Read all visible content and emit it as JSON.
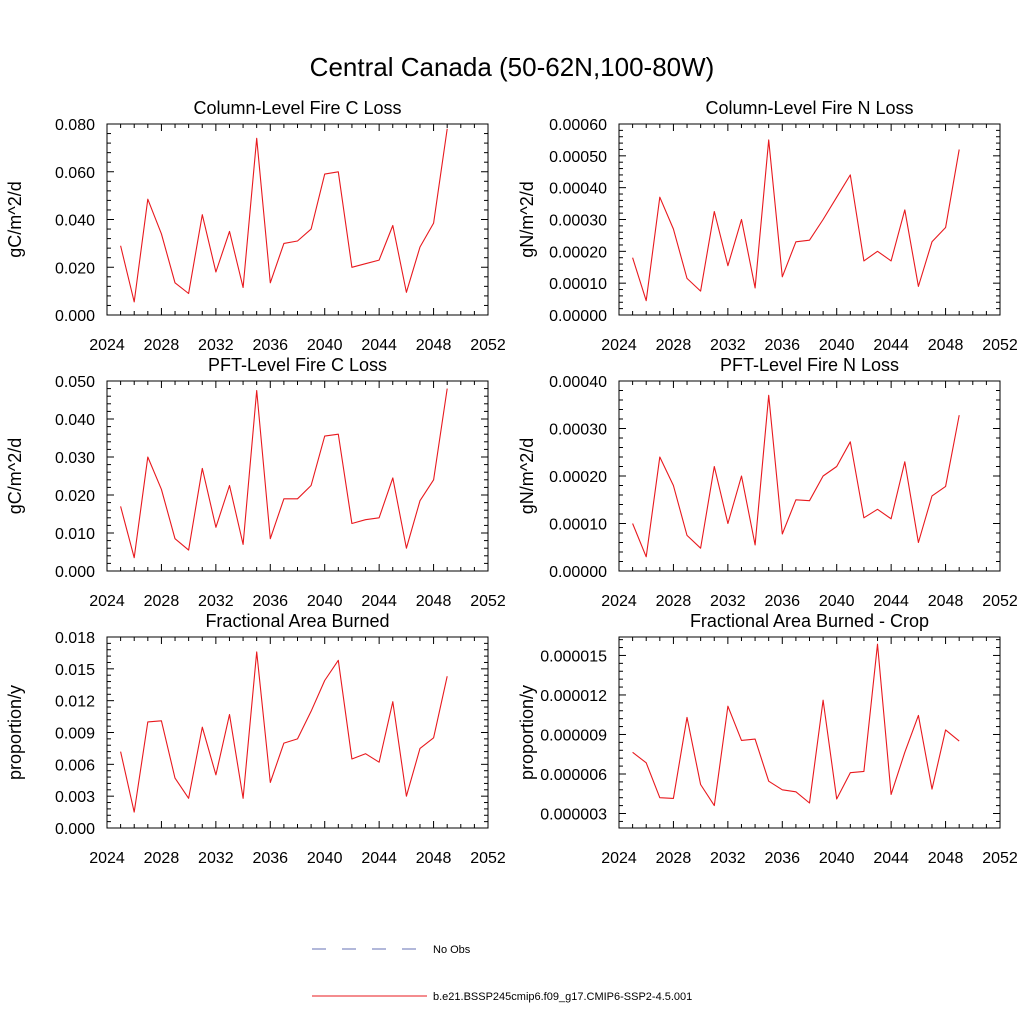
{
  "figure_title": "Central Canada (50-62N,100-80W)",
  "line_color": "#e8191e",
  "obs_color": "#6470b4",
  "legend": {
    "obs_label": "No Obs",
    "model_label": "b.e21.BSSP245cmip6.f09_g17.CMIP6-SSP2-4.5.001"
  },
  "chart_data": [
    {
      "type": "line",
      "title": "Column-Level Fire C Loss",
      "ylabel": "gC/m^2/d",
      "xlim": [
        2024,
        2052
      ],
      "ylim": [
        0,
        0.08
      ],
      "xticks": [
        2024,
        2028,
        2032,
        2036,
        2040,
        2044,
        2048,
        2052
      ],
      "yticks": [
        0,
        0.02,
        0.04,
        0.06,
        0.08
      ],
      "ytick_labels": [
        "0.000",
        "0.020",
        "0.040",
        "0.060",
        "0.080"
      ],
      "series": [
        {
          "x": [
            2025,
            2026,
            2027,
            2028,
            2029,
            2030,
            2031,
            2032,
            2033,
            2034,
            2035,
            2036,
            2037,
            2038,
            2039,
            2040,
            2041,
            2042,
            2043,
            2044,
            2045,
            2046,
            2047,
            2048,
            2049
          ],
          "values": [
            0.029,
            0.0055,
            0.0485,
            0.034,
            0.0135,
            0.009,
            0.042,
            0.018,
            0.035,
            0.0115,
            0.074,
            0.0135,
            0.03,
            0.031,
            0.036,
            0.059,
            0.06,
            0.02,
            0.0215,
            0.023,
            0.0375,
            0.0095,
            0.0285,
            0.0385,
            0.078
          ]
        }
      ]
    },
    {
      "type": "line",
      "title": "Column-Level Fire N Loss",
      "ylabel": "gN/m^2/d",
      "xlim": [
        2024,
        2052
      ],
      "ylim": [
        0,
        0.0006
      ],
      "xticks": [
        2024,
        2028,
        2032,
        2036,
        2040,
        2044,
        2048,
        2052
      ],
      "yticks": [
        0,
        0.0001,
        0.0002,
        0.0003,
        0.0004,
        0.0005,
        0.0006
      ],
      "ytick_labels": [
        "0.00000",
        "0.00010",
        "0.00020",
        "0.00030",
        "0.00040",
        "0.00050",
        "0.00060"
      ],
      "series": [
        {
          "x": [
            2025,
            2026,
            2027,
            2028,
            2029,
            2030,
            2031,
            2032,
            2033,
            2034,
            2035,
            2036,
            2037,
            2038,
            2039,
            2040,
            2041,
            2042,
            2043,
            2044,
            2045,
            2046,
            2047,
            2048,
            2049
          ],
          "values": [
            0.00018,
            4.5e-05,
            0.00037,
            0.00027,
            0.000115,
            7.5e-05,
            0.000325,
            0.000155,
            0.0003,
            8.5e-05,
            0.00055,
            0.00012,
            0.00023,
            0.000235,
            0.0003,
            0.00037,
            0.00044,
            0.00017,
            0.0002,
            0.00017,
            0.00033,
            9e-05,
            0.00023,
            0.000275,
            0.00052
          ]
        }
      ]
    },
    {
      "type": "line",
      "title": "PFT-Level Fire C Loss",
      "ylabel": "gC/m^2/d",
      "xlim": [
        2024,
        2052
      ],
      "ylim": [
        0,
        0.05
      ],
      "xticks": [
        2024,
        2028,
        2032,
        2036,
        2040,
        2044,
        2048,
        2052
      ],
      "yticks": [
        0,
        0.01,
        0.02,
        0.03,
        0.04,
        0.05
      ],
      "ytick_labels": [
        "0.000",
        "0.010",
        "0.020",
        "0.030",
        "0.040",
        "0.050"
      ],
      "series": [
        {
          "x": [
            2025,
            2026,
            2027,
            2028,
            2029,
            2030,
            2031,
            2032,
            2033,
            2034,
            2035,
            2036,
            2037,
            2038,
            2039,
            2040,
            2041,
            2042,
            2043,
            2044,
            2045,
            2046,
            2047,
            2048,
            2049
          ],
          "values": [
            0.017,
            0.0035,
            0.03,
            0.0215,
            0.0085,
            0.0055,
            0.027,
            0.0115,
            0.0225,
            0.007,
            0.0475,
            0.0085,
            0.019,
            0.019,
            0.0225,
            0.0355,
            0.036,
            0.0125,
            0.0135,
            0.014,
            0.0245,
            0.006,
            0.0185,
            0.024,
            0.048
          ]
        }
      ]
    },
    {
      "type": "line",
      "title": "PFT-Level Fire N Loss",
      "ylabel": "gN/m^2/d",
      "xlim": [
        2024,
        2052
      ],
      "ylim": [
        0,
        0.0004
      ],
      "xticks": [
        2024,
        2028,
        2032,
        2036,
        2040,
        2044,
        2048,
        2052
      ],
      "yticks": [
        0,
        0.0001,
        0.0002,
        0.0003,
        0.0004
      ],
      "ytick_labels": [
        "0.00000",
        "0.00010",
        "0.00020",
        "0.00030",
        "0.00040"
      ],
      "series": [
        {
          "x": [
            2025,
            2026,
            2027,
            2028,
            2029,
            2030,
            2031,
            2032,
            2033,
            2034,
            2035,
            2036,
            2037,
            2038,
            2039,
            2040,
            2041,
            2042,
            2043,
            2044,
            2045,
            2046,
            2047,
            2048,
            2049
          ],
          "values": [
            0.0001,
            3e-05,
            0.00024,
            0.00018,
            7.5e-05,
            4.8e-05,
            0.00022,
            0.0001,
            0.0002,
            5.5e-05,
            0.00037,
            7.8e-05,
            0.00015,
            0.000148,
            0.0002,
            0.00022,
            0.000272,
            0.000112,
            0.00013,
            0.00011,
            0.00023,
            6e-05,
            0.000158,
            0.000178,
            0.000328
          ]
        }
      ]
    },
    {
      "type": "line",
      "title": "Fractional Area Burned",
      "ylabel": "proportion/y",
      "xlim": [
        2024,
        2052
      ],
      "ylim": [
        0,
        0.018
      ],
      "xticks": [
        2024,
        2028,
        2032,
        2036,
        2040,
        2044,
        2048,
        2052
      ],
      "yticks": [
        0,
        0.003,
        0.006,
        0.009,
        0.012,
        0.015,
        0.018
      ],
      "ytick_labels": [
        "0.000",
        "0.003",
        "0.006",
        "0.009",
        "0.012",
        "0.015",
        "0.018"
      ],
      "series": [
        {
          "x": [
            2025,
            2026,
            2027,
            2028,
            2029,
            2030,
            2031,
            2032,
            2033,
            2034,
            2035,
            2036,
            2037,
            2038,
            2039,
            2040,
            2041,
            2042,
            2043,
            2044,
            2045,
            2046,
            2047,
            2048,
            2049
          ],
          "values": [
            0.0072,
            0.0015,
            0.01,
            0.0101,
            0.0047,
            0.0028,
            0.0095,
            0.005,
            0.0107,
            0.0028,
            0.0166,
            0.0043,
            0.008,
            0.0084,
            0.011,
            0.0139,
            0.0158,
            0.0065,
            0.007,
            0.0062,
            0.0119,
            0.003,
            0.0075,
            0.0085,
            0.0143
          ]
        }
      ]
    },
    {
      "type": "line",
      "title": "Fractional Area Burned - Crop",
      "ylabel": "proportion/y",
      "xlim": [
        2024,
        2052
      ],
      "ylim": [
        1.9e-06,
        1.64e-05
      ],
      "xticks": [
        2024,
        2028,
        2032,
        2036,
        2040,
        2044,
        2048,
        2052
      ],
      "yticks": [
        3e-06,
        6e-06,
        9e-06,
        1.2e-05,
        1.5e-05
      ],
      "ytick_labels": [
        "0.000003",
        "0.000006",
        "0.000009",
        "0.000012",
        "0.000015"
      ],
      "series": [
        {
          "x": [
            2025,
            2026,
            2027,
            2028,
            2029,
            2030,
            2031,
            2032,
            2033,
            2034,
            2035,
            2036,
            2037,
            2038,
            2039,
            2040,
            2041,
            2042,
            2043,
            2044,
            2045,
            2046,
            2047,
            2048,
            2049
          ],
          "values": [
            7.65e-06,
            6.85e-06,
            4.2e-06,
            4.15e-06,
            1.03e-05,
            5.2e-06,
            3.6e-06,
            1.115e-05,
            8.55e-06,
            8.65e-06,
            5.45e-06,
            4.8e-06,
            4.65e-06,
            3.8e-06,
            1.16e-05,
            4.1e-06,
            6.1e-06,
            6.2e-06,
            1.585e-05,
            4.45e-06,
            7.65e-06,
            1.045e-05,
            4.85e-06,
            9.35e-06,
            8.5e-06
          ]
        }
      ]
    }
  ]
}
